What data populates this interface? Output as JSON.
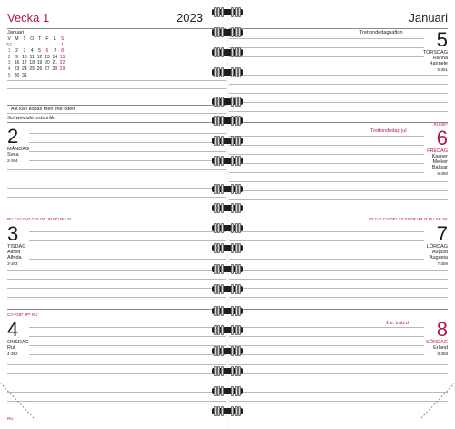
{
  "header": {
    "week": "Vecka 1",
    "year": "2023",
    "month": "Januari"
  },
  "mini_calendar": {
    "title": "Januari",
    "weekdays": [
      "V",
      "M",
      "T",
      "O",
      "T",
      "F",
      "L",
      "S"
    ],
    "rows": [
      [
        "52",
        "",
        "",
        "",
        "",
        "",
        "",
        "1"
      ],
      [
        "1",
        "2",
        "3",
        "4",
        "5",
        "6",
        "7",
        "8"
      ],
      [
        "2",
        "9",
        "10",
        "11",
        "12",
        "13",
        "14",
        "15"
      ],
      [
        "3",
        "16",
        "17",
        "18",
        "19",
        "20",
        "21",
        "22"
      ],
      [
        "4",
        "23",
        "24",
        "25",
        "26",
        "27",
        "28",
        "29"
      ],
      [
        "5",
        "30",
        "31",
        "",
        "",
        "",
        "",
        ""
      ]
    ]
  },
  "notes": {
    "quote": "Allt kan köpas men inte tiden.",
    "proverb_source": "Schweiziskt ordspråk"
  },
  "days": {
    "mon": {
      "num": "2",
      "name": "MÅNDAG",
      "names": [
        "Svea"
      ],
      "count": "2-364",
      "tags": ""
    },
    "tue": {
      "num": "3",
      "name": "TISDAG",
      "names": [
        "Alfred",
        "Alfrida"
      ],
      "count": "3-363",
      "tags": "RU CA* CH* CN* GB JP RO RU SI"
    },
    "wed": {
      "num": "4",
      "name": "ONSDAG",
      "names": [
        "Rut"
      ],
      "count": "4-362",
      "tags": "CA* GB* JP* RU"
    },
    "thu": {
      "num": "5",
      "name": "TORSDAG",
      "names": [
        "Hanna",
        "Hannele"
      ],
      "count": "5-361",
      "event": "Trettondedagsafton",
      "tags": ""
    },
    "fri": {
      "num": "6",
      "name": "FREDAG",
      "names": [
        "Kasper",
        "Melker",
        "Baltsar"
      ],
      "count": "6-360",
      "event": "Trettondedag jul",
      "tags": "RU SE*"
    },
    "sat": {
      "num": "7",
      "name": "LÖRDAG",
      "names": [
        "August",
        "Augusta"
      ],
      "count": "7-359",
      "tags": "AT CA* CY DE* ES FI GR HR IT RU SE SK"
    },
    "sun": {
      "num": "8",
      "name": "SÖNDAG",
      "names": [
        "Erland"
      ],
      "count": "8-358",
      "event": "1 e. tratt.d.",
      "tags": ""
    }
  },
  "footer": {
    "left_tag": "RU"
  },
  "colors": {
    "accent": "#b4154d",
    "rule": "#8a8a8a",
    "spiral": "#1e1e1e"
  }
}
